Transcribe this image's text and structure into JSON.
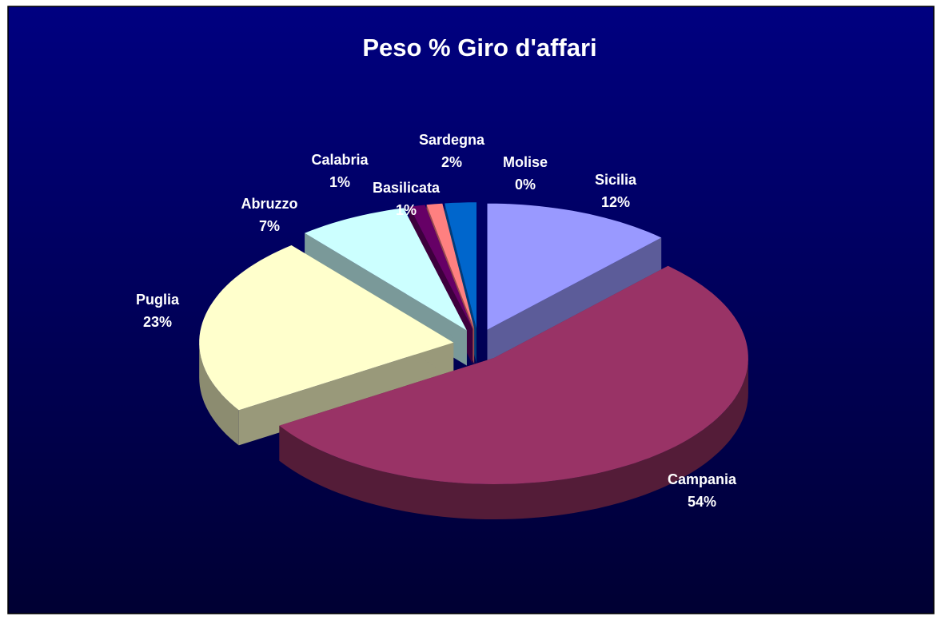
{
  "chart_data": {
    "type": "pie",
    "title": "Peso % Giro d'affari",
    "categories": [
      "Sicilia",
      "Campania",
      "Puglia",
      "Abruzzo",
      "Calabria",
      "Basilicata",
      "Sardegna",
      "Molise"
    ],
    "values": [
      12,
      54,
      23,
      7,
      1,
      1,
      2,
      0
    ],
    "value_labels": [
      "12%",
      "54%",
      "23%",
      "7%",
      "1%",
      "1%",
      "2%",
      "0%"
    ],
    "colors": [
      "#9999ff",
      "#993366",
      "#ffffcc",
      "#ccffff",
      "#660066",
      "#ff8080",
      "#0066cc",
      "#ccccff"
    ]
  }
}
